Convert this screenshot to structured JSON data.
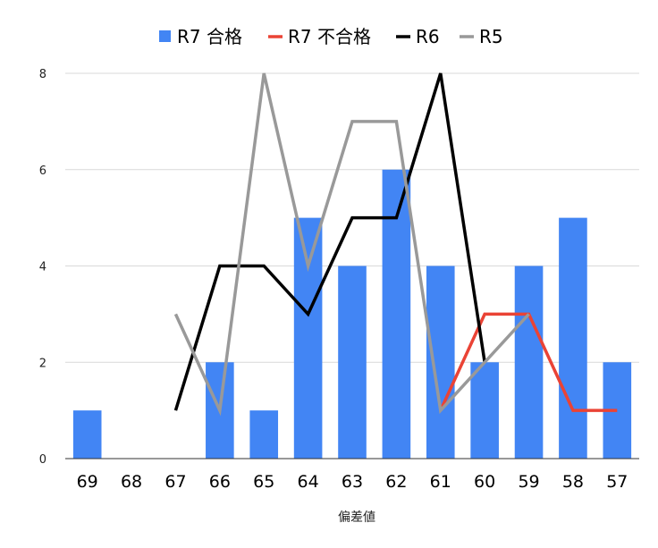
{
  "chart_data": {
    "type": "bar",
    "xlabel": "偏差値",
    "ylabel": "",
    "categories": [
      "69",
      "68",
      "67",
      "66",
      "65",
      "64",
      "63",
      "62",
      "61",
      "60",
      "59",
      "58",
      "57"
    ],
    "ylim": [
      0,
      8
    ],
    "yticks": [
      "0",
      "2",
      "4",
      "6",
      "8"
    ],
    "grid": true,
    "legend_position": "top",
    "series": [
      {
        "name": "R7 合格",
        "type": "bar",
        "color": "#4285f4",
        "values": [
          1,
          0,
          0,
          2,
          1,
          5,
          4,
          6,
          4,
          2,
          4,
          5,
          2
        ]
      },
      {
        "name": "R7 不合格",
        "type": "line",
        "color": "#ea4335",
        "values": [
          null,
          null,
          null,
          null,
          null,
          null,
          null,
          null,
          1,
          3,
          3,
          1,
          1
        ]
      },
      {
        "name": "R6",
        "type": "line",
        "color": "#000000",
        "values": [
          null,
          null,
          1,
          4,
          4,
          3,
          5,
          5,
          8,
          2,
          null,
          null,
          null
        ]
      },
      {
        "name": "R5",
        "type": "line",
        "color": "#999999",
        "values": [
          null,
          null,
          3,
          1,
          8,
          4,
          7,
          7,
          1,
          2,
          3,
          null,
          null
        ]
      }
    ]
  }
}
